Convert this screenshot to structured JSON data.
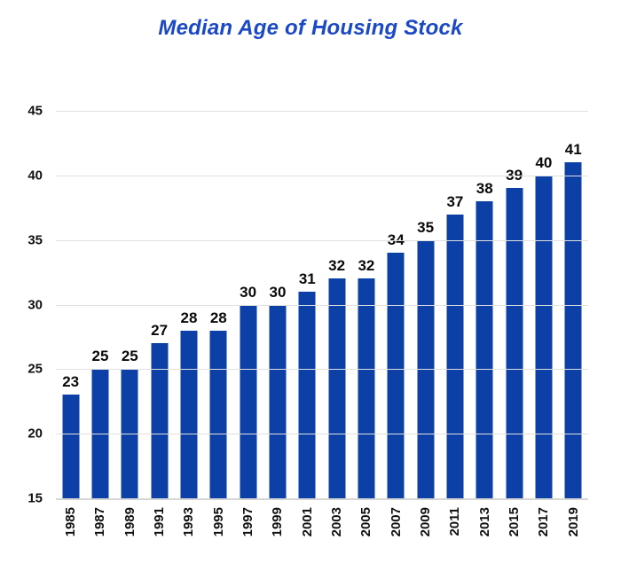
{
  "title": "Median Age of Housing Stock",
  "colors": {
    "title": "#1B49C5",
    "bar": "#0D40A6",
    "gridline": "#E0E0E0",
    "axis_line": "#D6D6D6",
    "label_text": "#0a0a0a"
  },
  "chart_data": {
    "type": "bar",
    "title": "Median Age of Housing Stock",
    "categories": [
      "1985",
      "1987",
      "1989",
      "1991",
      "1993",
      "1995",
      "1997",
      "1999",
      "2001",
      "2003",
      "2005",
      "2007",
      "2009",
      "2011",
      "2013",
      "2015",
      "2017",
      "2019"
    ],
    "values": [
      23,
      25,
      25,
      27,
      28,
      28,
      30,
      30,
      31,
      32,
      32,
      34,
      35,
      37,
      38,
      39,
      40,
      41
    ],
    "xlabel": "",
    "ylabel": "",
    "ylim": [
      15,
      45
    ],
    "y_ticks": [
      15,
      20,
      25,
      30,
      35,
      40,
      45
    ],
    "grid": true,
    "data_labels": true,
    "legend": "none",
    "x_tick_rotation_degrees": 90
  }
}
